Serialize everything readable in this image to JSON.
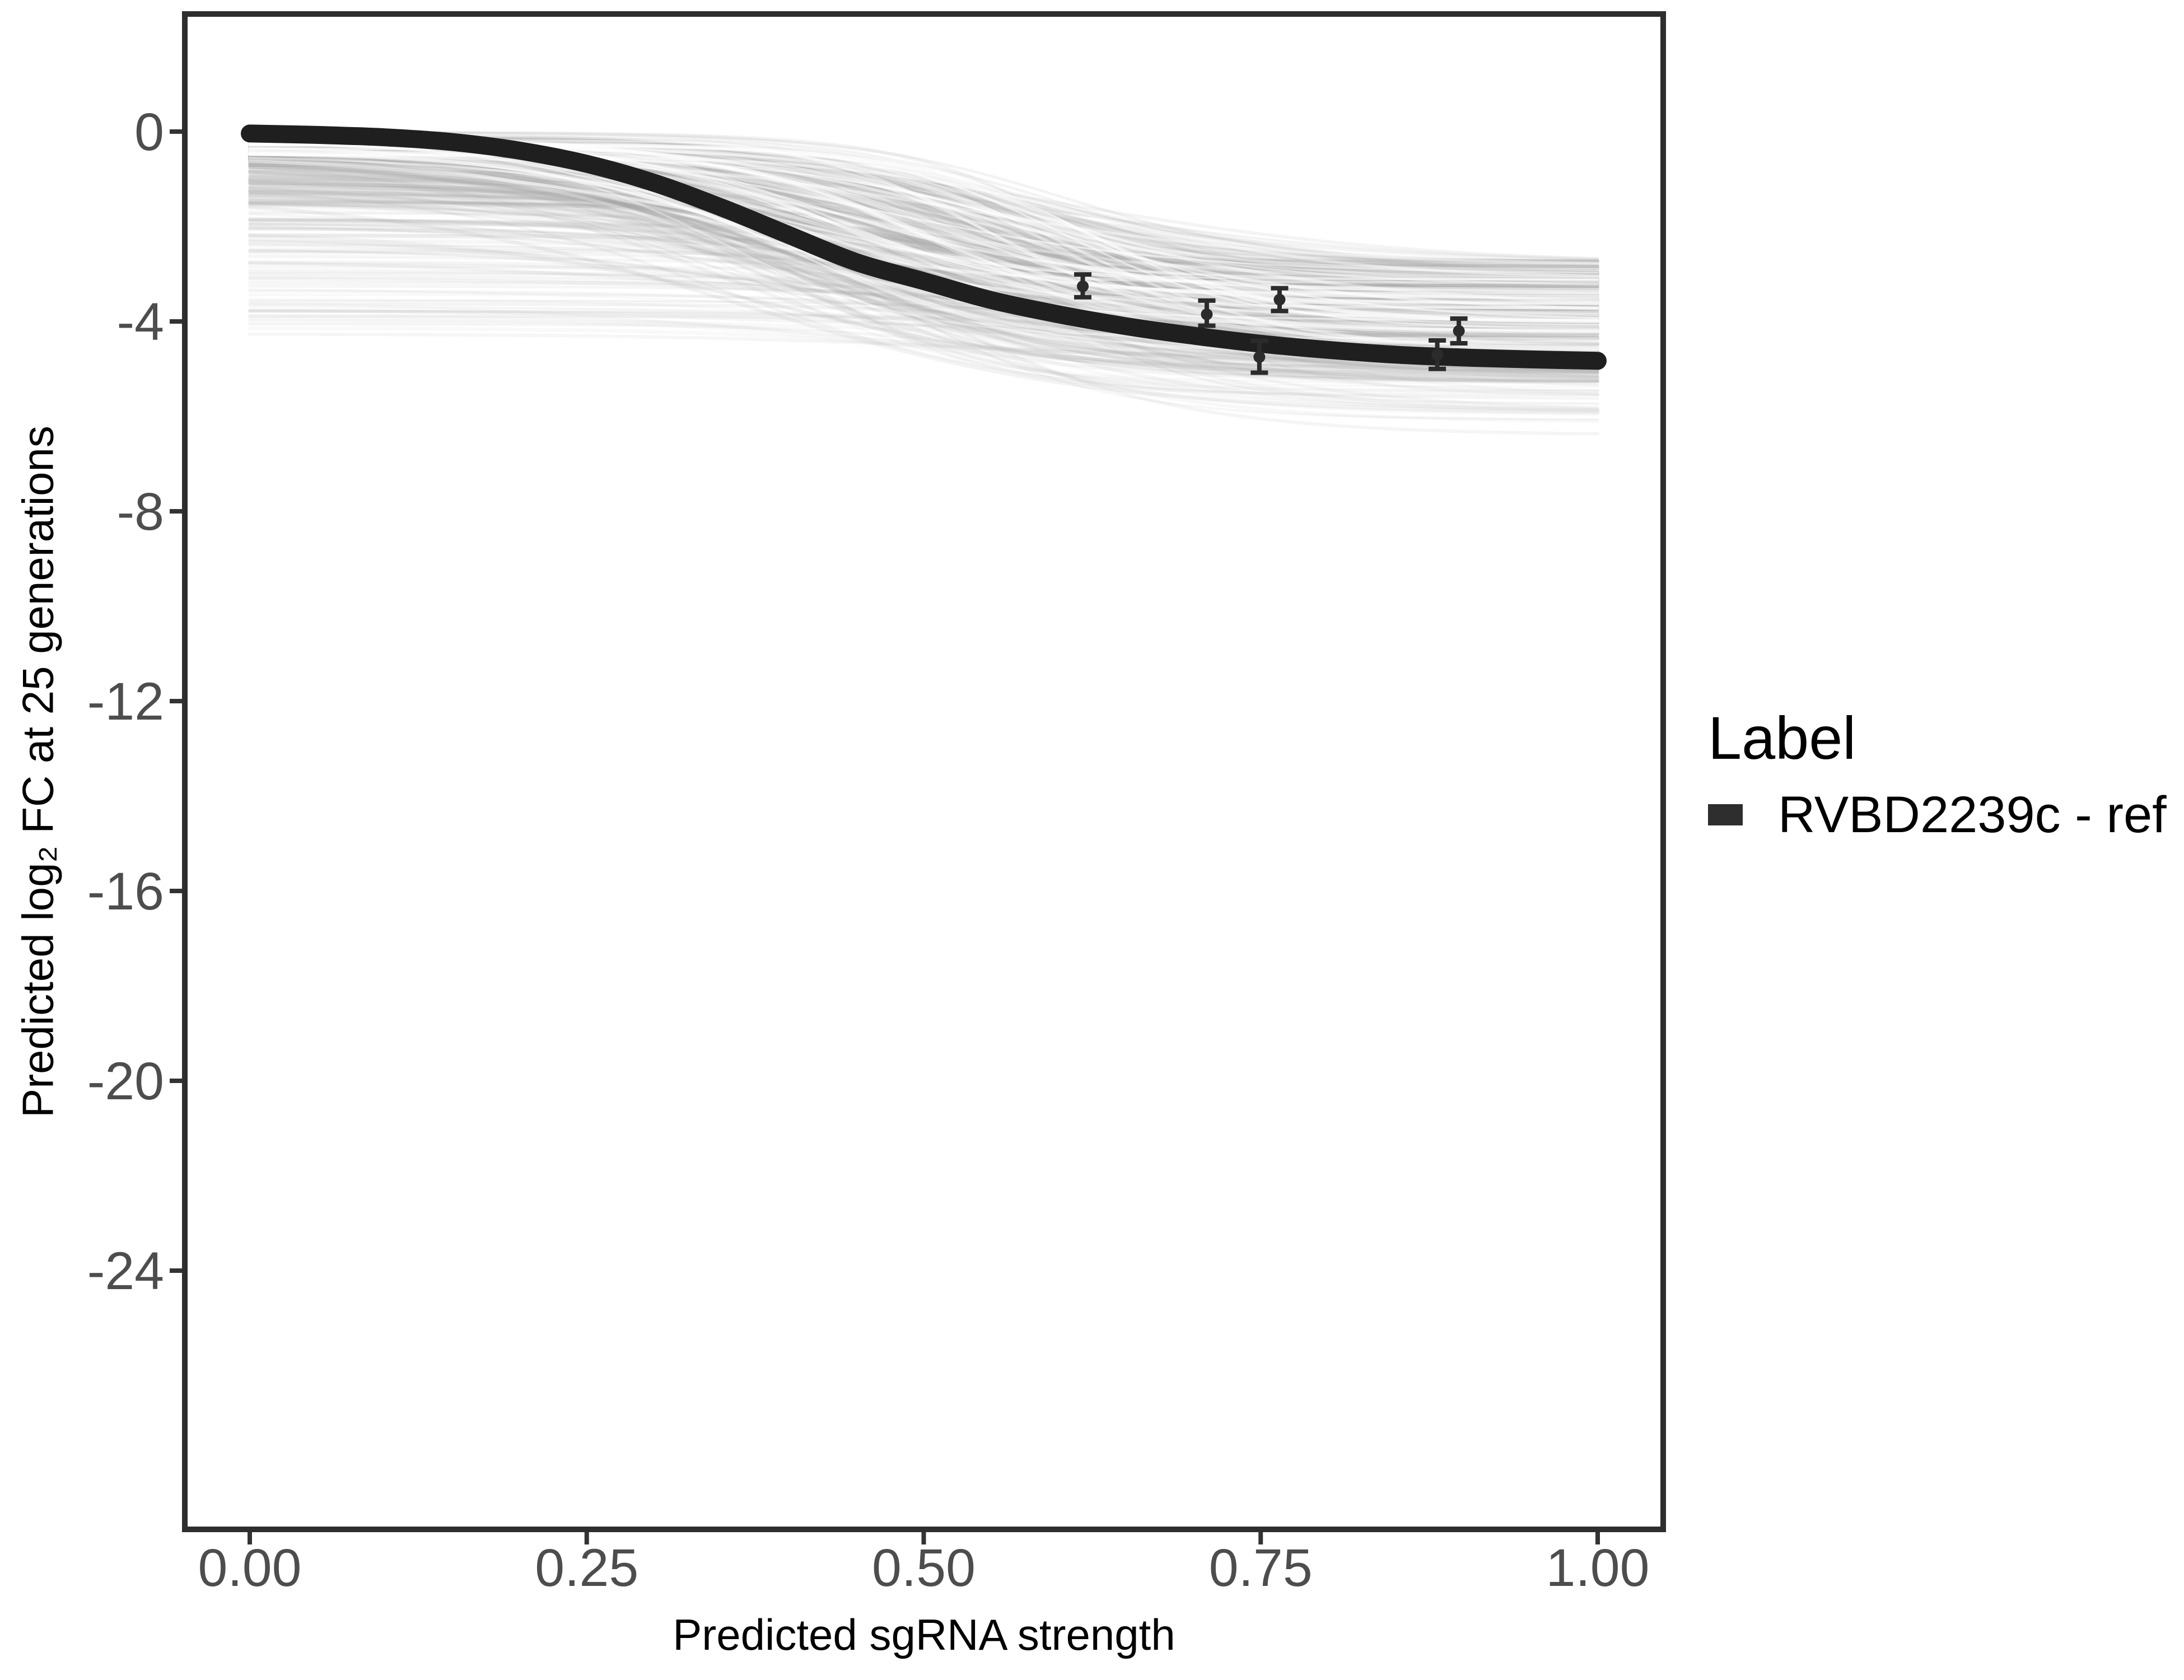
{
  "chart_data": {
    "type": "line",
    "title": "",
    "xlabel": "Predicted sgRNA strength",
    "ylabel": "Predicted  log₂ FC at 25 generations",
    "x_axis": {
      "range": [
        -0.048,
        1.049
      ],
      "ticks": [
        {
          "v": 0.0,
          "label": "0.00"
        },
        {
          "v": 0.25,
          "label": "0.25"
        },
        {
          "v": 0.5,
          "label": "0.50"
        },
        {
          "v": 0.75,
          "label": "0.75"
        },
        {
          "v": 1.0,
          "label": "1.00"
        }
      ]
    },
    "y_axis": {
      "range": [
        -29.45,
        2.48
      ],
      "ticks": [
        {
          "v": 0,
          "label": "0"
        },
        {
          "v": -4,
          "label": "-4"
        },
        {
          "v": -8,
          "label": "-8"
        },
        {
          "v": -12,
          "label": "-12"
        },
        {
          "v": -16,
          "label": "-16"
        },
        {
          "v": -20,
          "label": "-20"
        },
        {
          "v": -24,
          "label": "-24"
        }
      ]
    },
    "grid": "off",
    "legend": {
      "title": "Label",
      "position": "right",
      "items": [
        {
          "label": "RVBD2239c - ref",
          "swatch_color": "#2e2e2e"
        }
      ]
    },
    "reference_curve": {
      "name": "RVBD2239c - ref",
      "color": "#1f1f1f",
      "points": [
        [
          0.0,
          -0.04
        ],
        [
          0.05,
          -0.07
        ],
        [
          0.1,
          -0.12
        ],
        [
          0.15,
          -0.22
        ],
        [
          0.2,
          -0.4
        ],
        [
          0.25,
          -0.68
        ],
        [
          0.3,
          -1.08
        ],
        [
          0.35,
          -1.6
        ],
        [
          0.4,
          -2.18
        ],
        [
          0.45,
          -2.75
        ],
        [
          0.5,
          -3.15
        ],
        [
          0.55,
          -3.55
        ],
        [
          0.6,
          -3.85
        ],
        [
          0.65,
          -4.1
        ],
        [
          0.7,
          -4.3
        ],
        [
          0.75,
          -4.47
        ],
        [
          0.8,
          -4.6
        ],
        [
          0.85,
          -4.7
        ],
        [
          0.9,
          -4.76
        ],
        [
          0.95,
          -4.8
        ],
        [
          1.0,
          -4.83
        ]
      ]
    },
    "error_points": {
      "color": "#2b2b2b",
      "points": [
        {
          "x": 0.618,
          "y": -3.26,
          "ymin": -3.49,
          "ymax": -3.01
        },
        {
          "x": 0.71,
          "y": -3.85,
          "ymin": -4.09,
          "ymax": -3.56
        },
        {
          "x": 0.749,
          "y": -4.75,
          "ymin": -5.08,
          "ymax": -4.41
        },
        {
          "x": 0.764,
          "y": -3.54,
          "ymin": -3.78,
          "ymax": -3.3
        },
        {
          "x": 0.881,
          "y": -4.7,
          "ymin": -5.0,
          "ymax": -4.4
        },
        {
          "x": 0.897,
          "y": -4.2,
          "ymin": -4.46,
          "ymax": -3.94
        }
      ]
    },
    "ensemble": {
      "description": "posterior draws of sigmoid dose-response curves",
      "seed": 42,
      "curve_count": 420,
      "streak_count": 50,
      "color": "#a9a9a9",
      "streak_color": "#ffffff",
      "start_value_weights": [
        [
          0.55,
          0.0,
          -0.6
        ],
        [
          0.25,
          -0.5,
          -1.5
        ],
        [
          0.12,
          -1.5,
          -3.0
        ],
        [
          0.08,
          -3.0,
          -4.3
        ]
      ],
      "end_value_range": [
        -2.7,
        -5.3
      ],
      "deep_tail": {
        "prob": 0.05,
        "range": [
          -5.3,
          -6.2
        ]
      },
      "slope_range": [
        7,
        15
      ],
      "midpoint_range": [
        0.34,
        0.64
      ],
      "outliers": [
        {
          "u": -0.3,
          "e": -6.4,
          "k": 10.0,
          "x0": 0.47,
          "opacity": 0.12,
          "width": 6
        },
        {
          "u": -0.2,
          "e": -5.9,
          "k": 9.0,
          "x0": 0.53,
          "opacity": 0.1,
          "width": 5
        }
      ]
    },
    "style": {
      "panel_border_color": "#2e2e2e",
      "tick_color": "#333333",
      "tick_label_color": "#4d4d4d",
      "background": "#ffffff"
    }
  }
}
